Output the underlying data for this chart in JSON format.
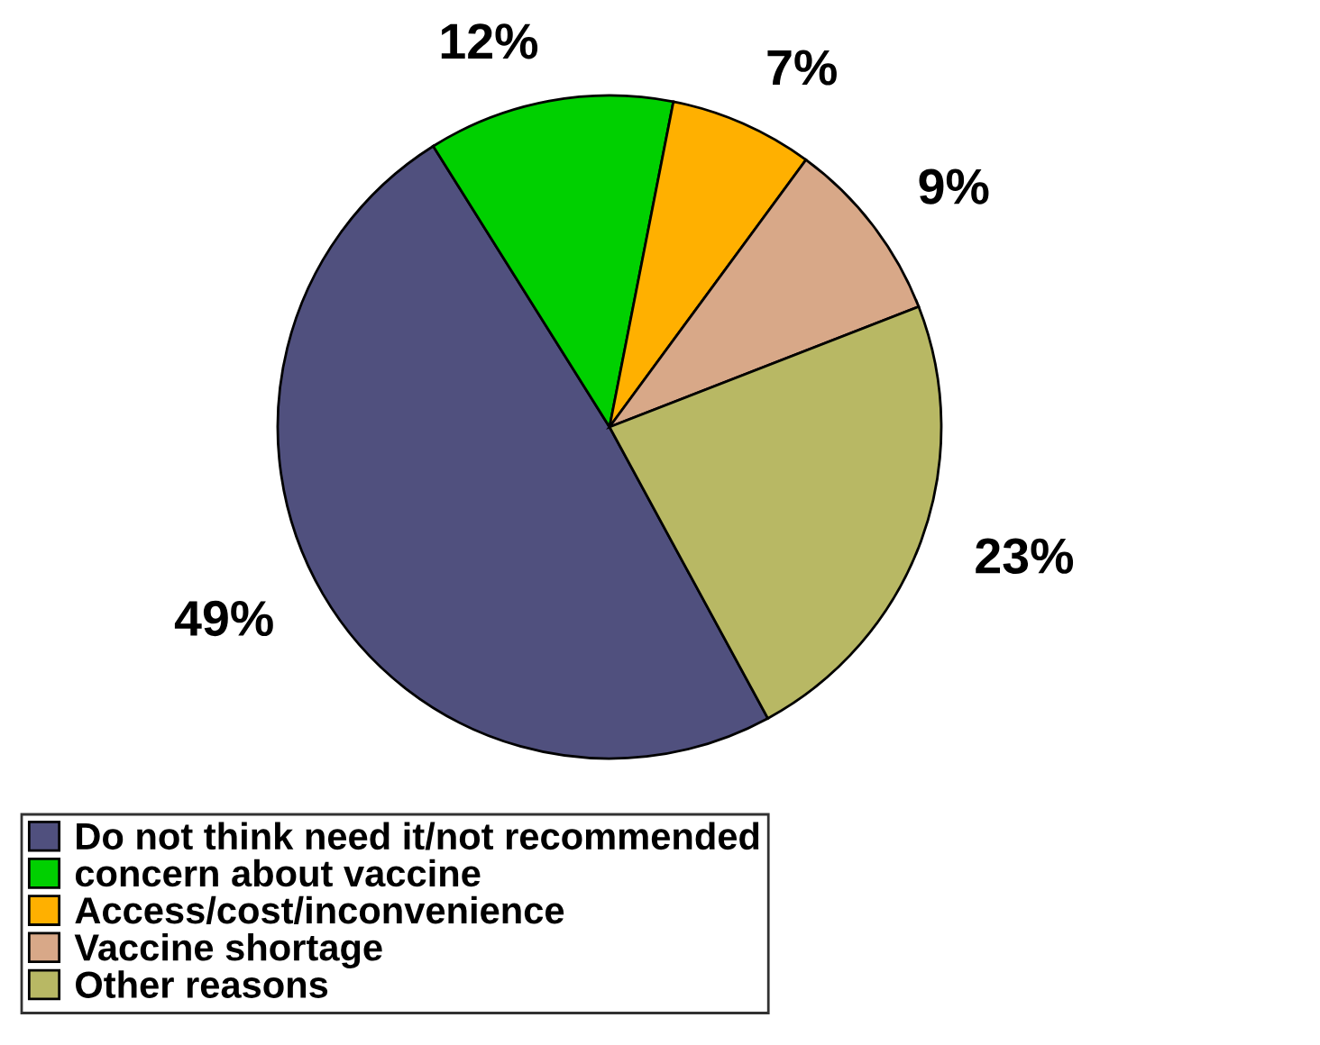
{
  "chart_data": {
    "type": "pie",
    "categories": [
      "Do not think need it/not recommended",
      "concern about vaccine",
      "Access/cost/inconvenience",
      "Vaccine shortage",
      "Other reasons"
    ],
    "values": [
      49,
      12,
      7,
      9,
      23
    ],
    "value_labels": [
      "49%",
      "12%",
      "7%",
      "9%",
      "23%"
    ],
    "colors": [
      "#50507e",
      "#00d000",
      "#ffb000",
      "#d8a888",
      "#b8b864"
    ],
    "legend": "bottom"
  }
}
